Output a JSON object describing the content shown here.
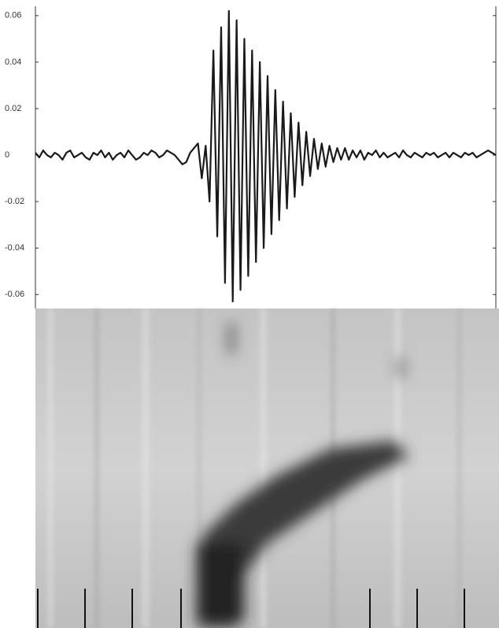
{
  "chart_data": {
    "type": "line",
    "values": [
      0.001,
      -0.001,
      0.002,
      0.0,
      -0.001,
      0.001,
      0.0,
      -0.002,
      0.001,
      0.002,
      -0.001,
      0.0,
      0.001,
      -0.001,
      -0.002,
      0.001,
      0.0,
      0.002,
      -0.001,
      0.001,
      -0.002,
      0.0,
      0.001,
      -0.001,
      0.002,
      0.0,
      -0.002,
      -0.001,
      0.001,
      0.0,
      0.002,
      0.001,
      -0.001,
      0.0,
      0.002,
      0.001,
      0.0,
      -0.002,
      -0.004,
      -0.003,
      0.001,
      0.003,
      0.005,
      -0.01,
      0.004,
      -0.02,
      0.045,
      -0.035,
      0.055,
      -0.055,
      0.062,
      -0.063,
      0.058,
      -0.058,
      0.05,
      -0.052,
      0.045,
      -0.046,
      0.04,
      -0.04,
      0.034,
      -0.034,
      0.028,
      -0.028,
      0.023,
      -0.023,
      0.018,
      -0.018,
      0.014,
      -0.013,
      0.01,
      -0.009,
      0.007,
      -0.006,
      0.005,
      -0.005,
      0.004,
      -0.003,
      0.003,
      -0.002,
      0.003,
      -0.002,
      0.002,
      -0.001,
      0.002,
      -0.002,
      0.001,
      0.0,
      0.002,
      -0.001,
      0.001,
      -0.001,
      0.0,
      0.001,
      -0.001,
      0.002,
      0.0,
      -0.001,
      0.001,
      0.0,
      -0.001,
      0.001,
      0.0,
      0.001,
      -0.001,
      0.0,
      0.001,
      -0.001,
      0.001,
      0.0,
      -0.001,
      0.001,
      0.0,
      0.001,
      -0.001,
      0.0,
      0.001,
      0.002,
      0.001,
      0.0
    ],
    "color": "#1a1a1a",
    "ylim": [
      -0.066,
      0.064
    ],
    "yticks": [
      0.06,
      0.04,
      0.02,
      0,
      -0.02,
      -0.04,
      -0.06
    ]
  }
}
